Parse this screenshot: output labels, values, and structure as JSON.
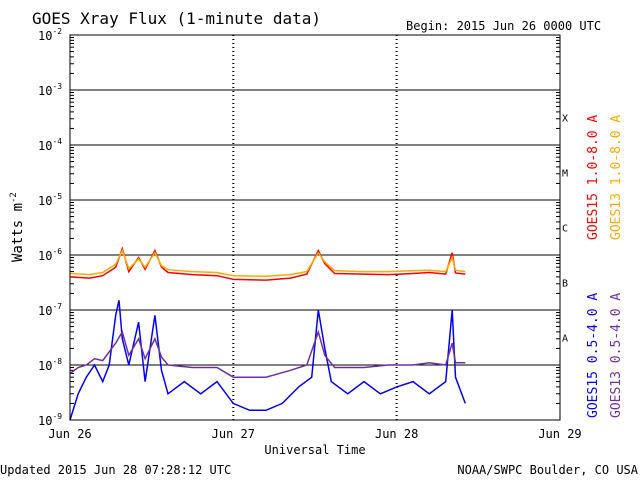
{
  "chart_data": {
    "type": "line",
    "title": "GOES Xray Flux (1-minute data)",
    "begin_label": "Begin:  2015 Jun 26 0000 UTC",
    "xlabel": "Universal Time",
    "ylabel": "Watts m",
    "ylabel_exp": "-2",
    "y_scale": "log",
    "ylim": [
      1e-09,
      0.01
    ],
    "xlim_days": [
      0,
      3
    ],
    "x_ticks": [
      {
        "day": 0,
        "label": "Jun 26"
      },
      {
        "day": 1,
        "label": "Jun 27"
      },
      {
        "day": 2,
        "label": "Jun 28"
      },
      {
        "day": 3,
        "label": "Jun 29"
      }
    ],
    "y_ticks": [
      {
        "exp": -9,
        "label": "10",
        "sup": "-9"
      },
      {
        "exp": -8,
        "label": "10",
        "sup": "-8"
      },
      {
        "exp": -7,
        "label": "10",
        "sup": "-7"
      },
      {
        "exp": -6,
        "label": "10",
        "sup": "-6"
      },
      {
        "exp": -5,
        "label": "10",
        "sup": "-5"
      },
      {
        "exp": -4,
        "label": "10",
        "sup": "-4"
      },
      {
        "exp": -3,
        "label": "10",
        "sup": "-3"
      },
      {
        "exp": -2,
        "label": "10",
        "sup": "-2"
      }
    ],
    "flare_classes": [
      {
        "label": "A",
        "exp": -8
      },
      {
        "label": "B",
        "exp": -7
      },
      {
        "label": "C",
        "exp": -6
      },
      {
        "label": "M",
        "exp": -5
      },
      {
        "label": "X",
        "exp": -4
      }
    ],
    "grid": true,
    "series": [
      {
        "name": "GOES15 1.0-8.0 A",
        "color": "#ff0000",
        "points": [
          [
            0,
            4e-07
          ],
          [
            0.12,
            3.8e-07
          ],
          [
            0.2,
            4.2e-07
          ],
          [
            0.28,
            6e-07
          ],
          [
            0.32,
            1.3e-06
          ],
          [
            0.36,
            5e-07
          ],
          [
            0.42,
            9e-07
          ],
          [
            0.46,
            5.5e-07
          ],
          [
            0.52,
            1.2e-06
          ],
          [
            0.56,
            6e-07
          ],
          [
            0.6,
            4.8e-07
          ],
          [
            0.75,
            4.4e-07
          ],
          [
            0.9,
            4.2e-07
          ],
          [
            1.0,
            3.6e-07
          ],
          [
            1.2,
            3.5e-07
          ],
          [
            1.35,
            3.8e-07
          ],
          [
            1.45,
            4.5e-07
          ],
          [
            1.52,
            1.2e-06
          ],
          [
            1.56,
            7e-07
          ],
          [
            1.62,
            4.6e-07
          ],
          [
            1.8,
            4.5e-07
          ],
          [
            1.95,
            4.4e-07
          ],
          [
            2.1,
            4.6e-07
          ],
          [
            2.2,
            4.8e-07
          ],
          [
            2.3,
            4.5e-07
          ],
          [
            2.34,
            1.1e-06
          ],
          [
            2.36,
            4.7e-07
          ],
          [
            2.42,
            4.5e-07
          ]
        ]
      },
      {
        "name": "GOES13 1.0-8.0 A",
        "color": "#ffaa00",
        "points": [
          [
            0,
            4.6e-07
          ],
          [
            0.12,
            4.4e-07
          ],
          [
            0.2,
            4.8e-07
          ],
          [
            0.28,
            6.8e-07
          ],
          [
            0.32,
            1.2e-06
          ],
          [
            0.36,
            5.6e-07
          ],
          [
            0.42,
            8.5e-07
          ],
          [
            0.46,
            6e-07
          ],
          [
            0.52,
            1.1e-06
          ],
          [
            0.56,
            6.4e-07
          ],
          [
            0.6,
            5.4e-07
          ],
          [
            0.75,
            5e-07
          ],
          [
            0.9,
            4.8e-07
          ],
          [
            1.0,
            4.2e-07
          ],
          [
            1.2,
            4.1e-07
          ],
          [
            1.35,
            4.4e-07
          ],
          [
            1.45,
            5e-07
          ],
          [
            1.52,
            1.1e-06
          ],
          [
            1.56,
            7.5e-07
          ],
          [
            1.62,
            5.2e-07
          ],
          [
            1.8,
            5e-07
          ],
          [
            1.95,
            5e-07
          ],
          [
            2.1,
            5.2e-07
          ],
          [
            2.2,
            5.3e-07
          ],
          [
            2.3,
            5e-07
          ],
          [
            2.34,
            9e-07
          ],
          [
            2.36,
            5.3e-07
          ],
          [
            2.42,
            5e-07
          ]
        ]
      },
      {
        "name": "GOES15 0.5-4.0 A",
        "color": "#0000ff",
        "points": [
          [
            0,
            1e-09
          ],
          [
            0.05,
            3e-09
          ],
          [
            0.1,
            6e-09
          ],
          [
            0.15,
            1e-08
          ],
          [
            0.2,
            5e-09
          ],
          [
            0.24,
            1e-08
          ],
          [
            0.28,
            8e-08
          ],
          [
            0.3,
            1.5e-07
          ],
          [
            0.32,
            3e-08
          ],
          [
            0.36,
            1e-08
          ],
          [
            0.42,
            6e-08
          ],
          [
            0.46,
            5e-09
          ],
          [
            0.52,
            8e-08
          ],
          [
            0.56,
            8e-09
          ],
          [
            0.6,
            3e-09
          ],
          [
            0.7,
            5e-09
          ],
          [
            0.8,
            3e-09
          ],
          [
            0.9,
            5e-09
          ],
          [
            1.0,
            2e-09
          ],
          [
            1.1,
            1.5e-09
          ],
          [
            1.2,
            1.5e-09
          ],
          [
            1.3,
            2e-09
          ],
          [
            1.4,
            4e-09
          ],
          [
            1.48,
            6e-09
          ],
          [
            1.52,
            1e-07
          ],
          [
            1.56,
            2e-08
          ],
          [
            1.6,
            5e-09
          ],
          [
            1.7,
            3e-09
          ],
          [
            1.8,
            5e-09
          ],
          [
            1.9,
            3e-09
          ],
          [
            2.0,
            4e-09
          ],
          [
            2.1,
            5e-09
          ],
          [
            2.2,
            3e-09
          ],
          [
            2.3,
            5e-09
          ],
          [
            2.34,
            1e-07
          ],
          [
            2.36,
            6e-09
          ],
          [
            2.42,
            2e-09
          ]
        ]
      },
      {
        "name": "GOES13 0.5-4.0 A",
        "color": "#7030a0",
        "points": [
          [
            0,
            7e-09
          ],
          [
            0.05,
            9e-09
          ],
          [
            0.1,
            1e-08
          ],
          [
            0.15,
            1.3e-08
          ],
          [
            0.2,
            1.2e-08
          ],
          [
            0.28,
            2.5e-08
          ],
          [
            0.32,
            4e-08
          ],
          [
            0.36,
            1.5e-08
          ],
          [
            0.42,
            3e-08
          ],
          [
            0.46,
            1.3e-08
          ],
          [
            0.52,
            3e-08
          ],
          [
            0.56,
            1.4e-08
          ],
          [
            0.6,
            1e-08
          ],
          [
            0.75,
            9e-09
          ],
          [
            0.9,
            9e-09
          ],
          [
            1.0,
            6e-09
          ],
          [
            1.2,
            6e-09
          ],
          [
            1.35,
            8e-09
          ],
          [
            1.45,
            1e-08
          ],
          [
            1.52,
            4e-08
          ],
          [
            1.56,
            1.5e-08
          ],
          [
            1.62,
            9e-09
          ],
          [
            1.8,
            9e-09
          ],
          [
            1.95,
            1e-08
          ],
          [
            2.1,
            1e-08
          ],
          [
            2.2,
            1.1e-08
          ],
          [
            2.3,
            1e-08
          ],
          [
            2.34,
            2.5e-08
          ],
          [
            2.36,
            1.1e-08
          ],
          [
            2.42,
            1.1e-08
          ]
        ]
      }
    ]
  },
  "footer": {
    "updated": "Updated 2015 Jun 28 07:28:12 UTC",
    "credit": "NOAA/SWPC Boulder, CO USA"
  }
}
